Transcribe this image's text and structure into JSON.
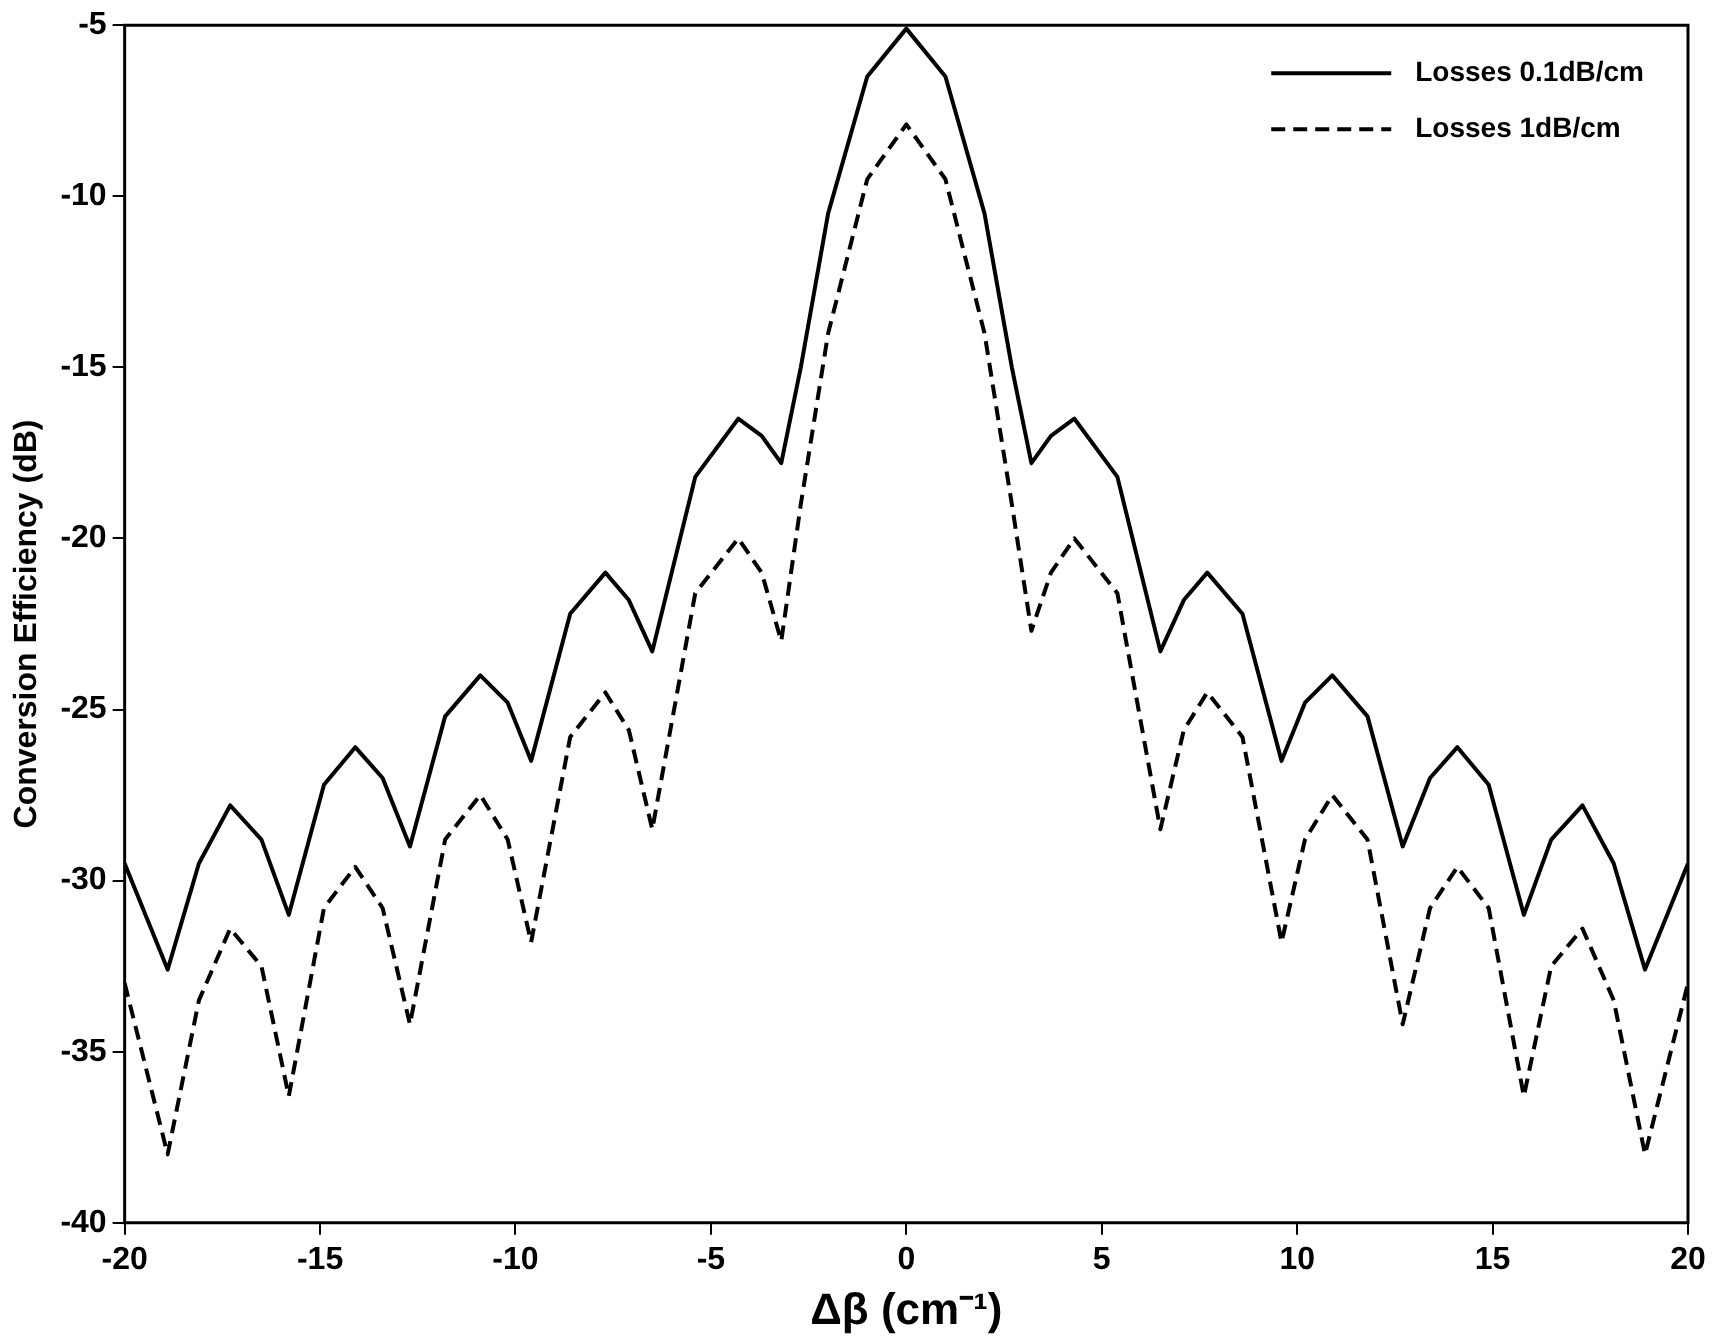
{
  "chart_data": {
    "type": "line",
    "xlabel": "Δβ (cm⁻¹)",
    "ylabel": "Conversion Efficiency (dB)",
    "x": [
      -20,
      -18.9,
      -18.1,
      -17.3,
      -16.5,
      -15.8,
      -14.9,
      -14.1,
      -13.4,
      -12.7,
      -11.8,
      -10.9,
      -10.2,
      -9.6,
      -8.6,
      -7.7,
      -7.1,
      -6.5,
      -5.4,
      -4.3,
      -3.7,
      -3.2,
      -2.7,
      -2,
      -1,
      0,
      1,
      2,
      2.7,
      3.2,
      3.7,
      4.3,
      5.4,
      6.5,
      7.1,
      7.7,
      8.6,
      9.6,
      10.2,
      10.9,
      11.8,
      12.7,
      13.4,
      14.1,
      14.9,
      15.8,
      16.5,
      17.3,
      18.1,
      18.9,
      20
    ],
    "series": [
      {
        "name": "Losses 0.1dB/cm",
        "color": "#000000",
        "line_style": "solid",
        "values": [
          -29.5,
          -32.6,
          -29.5,
          -27.8,
          -28.8,
          -31,
          -27.2,
          -26.1,
          -27,
          -29,
          -25.2,
          -24,
          -24.8,
          -26.5,
          -22.2,
          -21,
          -21.8,
          -23.3,
          -18.2,
          -16.5,
          -17,
          -17.8,
          -15,
          -10.5,
          -6.5,
          -5.1,
          -6.5,
          -10.5,
          -15,
          -17.8,
          -17,
          -16.5,
          -18.2,
          -23.3,
          -21.8,
          -21,
          -22.2,
          -26.5,
          -24.8,
          -24,
          -25.2,
          -29,
          -27,
          -26.1,
          -27.2,
          -31,
          -28.8,
          -27.8,
          -29.5,
          -32.6,
          -29.5
        ]
      },
      {
        "name": "Losses 1dB/cm",
        "color": "#000000",
        "line_style": "dashed",
        "values": [
          -33,
          -38,
          -33.5,
          -31.4,
          -32.5,
          -36.3,
          -30.8,
          -29.6,
          -30.8,
          -34.2,
          -28.8,
          -27.5,
          -28.8,
          -31.8,
          -25.8,
          -24.5,
          -25.6,
          -28.5,
          -21.6,
          -20,
          -21,
          -23,
          -19,
          -14,
          -9.5,
          -7.9,
          -9.5,
          -14,
          -19,
          -22.7,
          -21,
          -20,
          -21.6,
          -28.5,
          -25.6,
          -24.5,
          -25.8,
          -31.8,
          -28.8,
          -27.5,
          -28.8,
          -34.2,
          -30.8,
          -29.6,
          -30.8,
          -36.3,
          -32.5,
          -31.4,
          -33.5,
          -38,
          -33
        ]
      }
    ],
    "xlim": [
      -20,
      20
    ],
    "xticks": [
      -20,
      -15,
      -10,
      -5,
      0,
      5,
      10,
      15,
      20
    ],
    "ylim": [
      -40,
      -5
    ],
    "yticks": [
      -40,
      -35,
      -30,
      -25,
      -20,
      -15,
      -10,
      -5
    ],
    "grid": false,
    "legend": "top right",
    "marker": "none"
  }
}
